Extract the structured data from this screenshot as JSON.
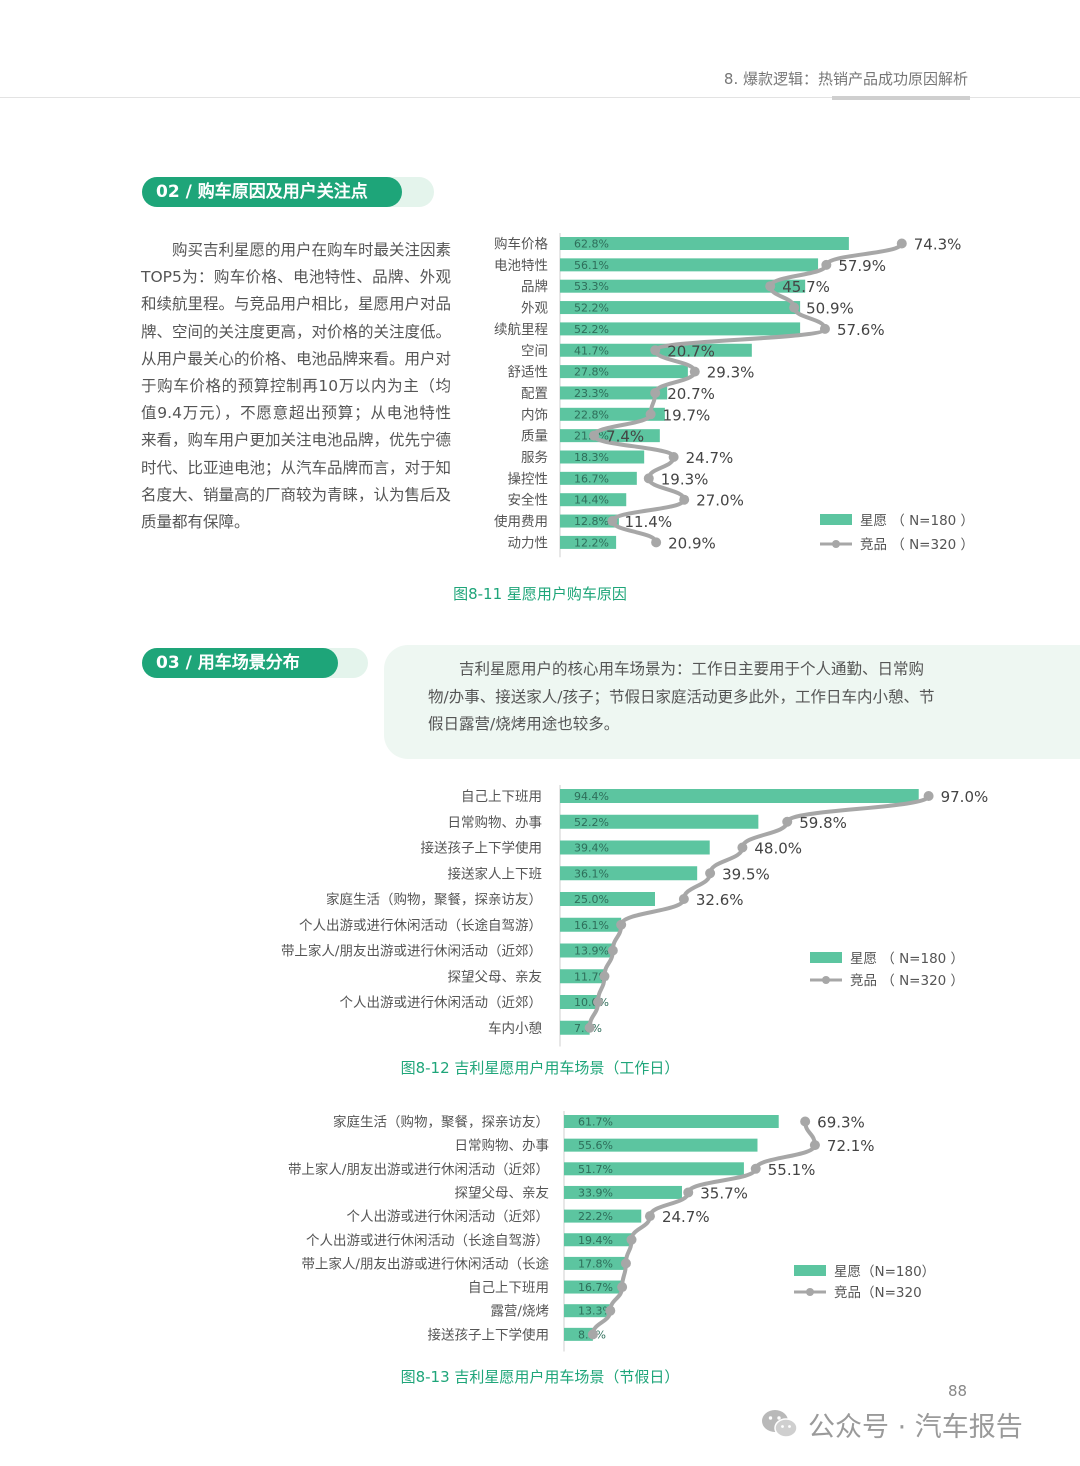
{
  "header": {
    "title": "8. 爆款逻辑：热销产品成功原因解析"
  },
  "section1": {
    "pill": "02 / 购车原因及用户关注点",
    "paragraph": "购买吉利星愿的用户在购车时最关注因素TOP5为：购车价格、电池特性、品牌、外观和续航里程。与竞品用户相比，星愿用户对品牌、空间的关注度更高，对价格的关注度低。从用户最关心的价格、电池品牌来看。用户对于购车价格的预算控制再10万以内为主（均值9.4万元），不愿意超出预算；从电池特性来看，购车用户更加关注电池品牌，优先宁德时代、比亚迪电池；从汽车品牌而言，对于知名度大、销量高的厂商较为青睐，认为售后及质量都有保障。"
  },
  "section2": {
    "pill": "03 / 用车场景分布",
    "callout": "吉利星愿用户的核心用车场景为：工作日主要用于个人通勤、日常购物/办事、接送家人/孩子；节假日家庭活动更多此外，工作日车内小憩、节假日露营/烧烤用途也较多。"
  },
  "chart_data": [
    {
      "type": "bar",
      "caption": "图8-11 星愿用户购车原因",
      "categories": [
        "购车价格",
        "电池特性",
        "品牌",
        "外观",
        "续航里程",
        "空间",
        "舒适性",
        "配置",
        "内饰",
        "质量",
        "服务",
        "操控性",
        "安全性",
        "使用费用",
        "动力性"
      ],
      "series": [
        {
          "name": "星愿 （ N=180 ）",
          "kind": "bar",
          "values": [
            62.8,
            56.1,
            53.3,
            52.2,
            52.2,
            41.7,
            27.8,
            23.3,
            22.8,
            21.7,
            18.3,
            16.7,
            14.4,
            12.8,
            12.2
          ]
        },
        {
          "name": "竞品 （ N=320 ）",
          "kind": "line",
          "values": [
            74.3,
            57.9,
            45.7,
            50.9,
            57.6,
            20.7,
            29.3,
            20.7,
            19.7,
            7.4,
            24.7,
            19.3,
            27.0,
            11.4,
            20.9
          ]
        }
      ],
      "labels": {
        "bar": [
          "62.8%",
          "56.1%",
          "53.3%",
          "52.2%",
          "52.2%",
          "41.7%",
          "27.8%",
          "23.3%",
          "22.8%",
          "21.7%",
          "18.3%",
          "16.7%",
          "14.4%",
          "12.8%",
          "12.2%"
        ],
        "line": [
          "74.3%",
          "57.9%",
          "45.7%",
          "50.9%",
          "57.6%",
          "20.7%",
          "29.3%",
          "20.7%",
          "19.7%",
          "7.4%",
          "24.7%",
          "19.3%",
          "27.0%",
          "11.4%",
          "20.9%"
        ]
      },
      "legend_position": "bottom-right",
      "colors": {
        "bar": "#5cc5a0",
        "line": "#a7a7a7"
      }
    },
    {
      "type": "bar",
      "caption": "图8-12 吉利星愿用户用车场景（工作日）",
      "categories": [
        "自己上下班用",
        "日常购物、办事",
        "接送孩子上下学使用",
        "接送家人上下班",
        "家庭生活（购物，聚餐，探亲访友）",
        "个人出游或进行休闲活动（长途自驾游）",
        "带上家人/朋友出游或进行休闲活动（近郊）",
        "探望父母、亲友",
        "个人出游或进行休闲活动（近郊）",
        "车内小憩"
      ],
      "series": [
        {
          "name": "星愿 （ N=180 ）",
          "kind": "bar",
          "values": [
            94.4,
            52.2,
            39.4,
            36.1,
            25.0,
            16.1,
            13.9,
            11.7,
            10.0,
            7.8
          ]
        },
        {
          "name": "竞品 （ N=320 ）",
          "kind": "line",
          "values": [
            97.0,
            59.8,
            48.0,
            39.5,
            32.6,
            16.1,
            13.9,
            11.7,
            10.0,
            7.8
          ]
        }
      ],
      "labels": {
        "bar": [
          "94.4%",
          "52.2%",
          "39.4%",
          "36.1%",
          "25.0%",
          "16.1%",
          "13.9%",
          "11.7%",
          "10.0%",
          "7.8%"
        ],
        "line": [
          "97.0%",
          "59.8%",
          "48.0%",
          "39.5%",
          "32.6%",
          "",
          "",
          "",
          "",
          ""
        ]
      },
      "legend_position": "right",
      "colors": {
        "bar": "#5cc5a0",
        "line": "#a7a7a7"
      }
    },
    {
      "type": "bar",
      "caption": "图8-13 吉利星愿用户用车场景（节假日）",
      "categories": [
        "家庭生活（购物，聚餐，探亲访友）",
        "日常购物、办事",
        "带上家人/朋友出游或进行休闲活动（近郊）",
        "探望父母、亲友",
        "个人出游或进行休闲活动（近郊）",
        "个人出游或进行休闲活动（长途自驾游）",
        "带上家人/朋友出游或进行休闲活动（长途",
        "自己上下班用",
        "露营/烧烤",
        "接送孩子上下学使用"
      ],
      "series": [
        {
          "name": "星愿（N=180）",
          "kind": "bar",
          "values": [
            61.7,
            55.6,
            51.7,
            33.9,
            22.2,
            19.4,
            17.8,
            16.7,
            13.3,
            8.3
          ]
        },
        {
          "name": "竞品（N=320",
          "kind": "line",
          "values": [
            69.3,
            72.1,
            55.1,
            35.7,
            24.7,
            19.4,
            17.8,
            16.7,
            13.3,
            8.3
          ]
        }
      ],
      "labels": {
        "bar": [
          "61.7%",
          "55.6%",
          "51.7%",
          "33.9%",
          "22.2%",
          "19.4%",
          "17.8%",
          "16.7%",
          "13.3%",
          "8.3%"
        ],
        "line": [
          "69.3%",
          "72.1%",
          "55.1%",
          "35.7%",
          "24.7%",
          "",
          "",
          "",
          "",
          ""
        ]
      },
      "legend_position": "right",
      "colors": {
        "bar": "#5cc5a0",
        "line": "#a7a7a7"
      }
    }
  ],
  "footer": {
    "page_number": "88",
    "watermark": "公众号 · 汽车报告",
    "watermark_icon": "wechat-icon"
  }
}
